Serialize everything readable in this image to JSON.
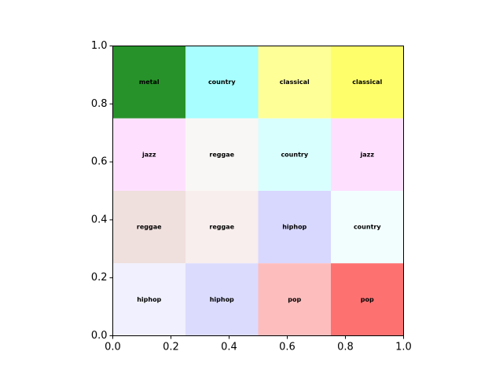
{
  "chart_data": {
    "type": "heatmap",
    "title": "",
    "xlabel": "",
    "ylabel": "",
    "xlim": [
      0,
      1
    ],
    "ylim": [
      0,
      1
    ],
    "grid": false,
    "x_ticks": [
      "0.0",
      "0.2",
      "0.4",
      "0.6",
      "0.8",
      "1.0"
    ],
    "y_ticks": [
      "0.0",
      "0.2",
      "0.4",
      "0.6",
      "0.8",
      "1.0"
    ],
    "cell_width": 0.25,
    "cell_height": 0.25,
    "cells": [
      {
        "x0": 0.0,
        "y0": 0.75,
        "label": "metal",
        "color": "#27922a"
      },
      {
        "x0": 0.25,
        "y0": 0.75,
        "label": "country",
        "color": "#a8fefe"
      },
      {
        "x0": 0.5,
        "y0": 0.75,
        "label": "classical",
        "color": "#feff96"
      },
      {
        "x0": 0.75,
        "y0": 0.75,
        "label": "classical",
        "color": "#fefe6a"
      },
      {
        "x0": 0.0,
        "y0": 0.5,
        "label": "jazz",
        "color": "#fee0fe"
      },
      {
        "x0": 0.25,
        "y0": 0.5,
        "label": "reggae",
        "color": "#f9f7f5"
      },
      {
        "x0": 0.5,
        "y0": 0.5,
        "label": "country",
        "color": "#d9fefe"
      },
      {
        "x0": 0.75,
        "y0": 0.5,
        "label": "jazz",
        "color": "#fee0fe"
      },
      {
        "x0": 0.0,
        "y0": 0.25,
        "label": "reggae",
        "color": "#efdfdd"
      },
      {
        "x0": 0.25,
        "y0": 0.25,
        "label": "reggae",
        "color": "#f7eeed"
      },
      {
        "x0": 0.5,
        "y0": 0.25,
        "label": "hiphop",
        "color": "#d8d7fe"
      },
      {
        "x0": 0.75,
        "y0": 0.25,
        "label": "country",
        "color": "#f2fefe"
      },
      {
        "x0": 0.0,
        "y0": 0.0,
        "label": "hiphop",
        "color": "#f0f0fe"
      },
      {
        "x0": 0.25,
        "y0": 0.0,
        "label": "hiphop",
        "color": "#dbdbfe"
      },
      {
        "x0": 0.5,
        "y0": 0.0,
        "label": "pop",
        "color": "#febdbd"
      },
      {
        "x0": 0.75,
        "y0": 0.0,
        "label": "pop",
        "color": "#fe7171"
      }
    ]
  }
}
